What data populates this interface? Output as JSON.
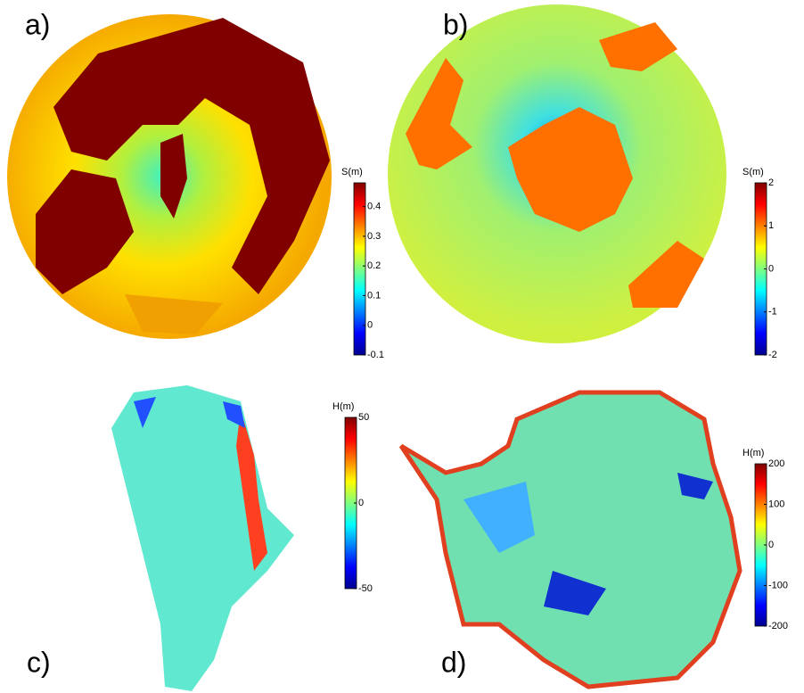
{
  "panels": [
    {
      "label": "a)",
      "colorbar": {
        "title": "S(m)",
        "lim": [
          -0.1,
          0.48
        ],
        "ticks": [
          0.4,
          0.3,
          0.2,
          0.1,
          0,
          -0.1
        ]
      }
    },
    {
      "label": "b)",
      "colorbar": {
        "title": "S(m)",
        "lim": [
          -2,
          2
        ],
        "ticks": [
          2,
          1,
          0,
          -1,
          -2
        ]
      }
    },
    {
      "label": "c)",
      "colorbar": {
        "title": "H(m)",
        "lim": [
          -50,
          50
        ],
        "ticks": [
          50,
          0,
          -50
        ]
      }
    },
    {
      "label": "d)",
      "colorbar": {
        "title": "H(m)",
        "lim": [
          -200,
          200
        ],
        "ticks": [
          200,
          100,
          0,
          -100,
          -200
        ]
      }
    }
  ]
}
